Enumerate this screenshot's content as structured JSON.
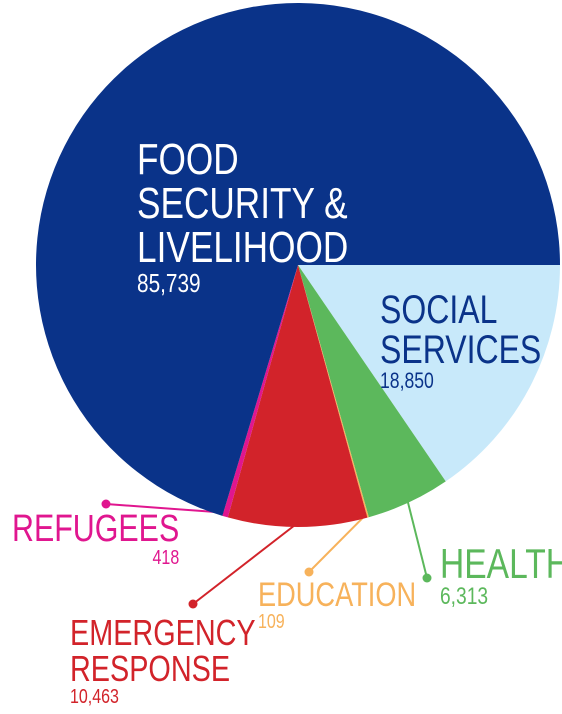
{
  "chart_data": {
    "type": "pie",
    "categories": [
      "SOCIAL SERVICES",
      "HEALTH",
      "EDUCATION",
      "EMERGENCY RESPONSE",
      "REFUGEES",
      "FOOD SECURITY & LIVELIHOOD"
    ],
    "values": [
      18850,
      6313,
      109,
      10463,
      418,
      85739
    ],
    "value_labels": [
      "18,850",
      "6,313",
      "109",
      "10,463",
      "418",
      "85,739"
    ],
    "colors": [
      "#c8e9fa",
      "#5cb85c",
      "#f7b25b",
      "#d2232a",
      "#e0168f",
      "#0a3389"
    ],
    "label_colors": [
      "#0a3389",
      "#5cb85c",
      "#f7b25b",
      "#d2232a",
      "#e0168f",
      "#ffffff"
    ]
  }
}
